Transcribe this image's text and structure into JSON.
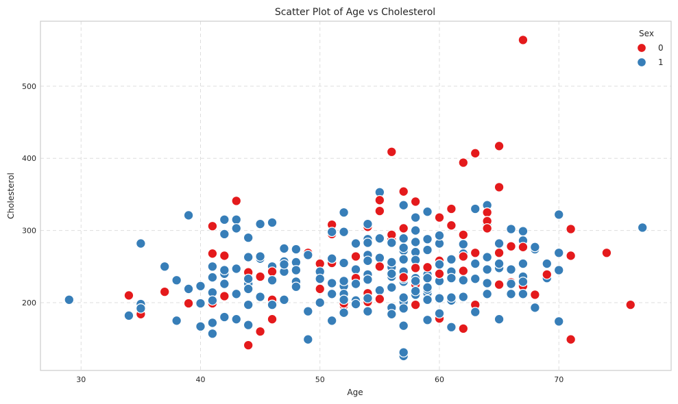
{
  "chart_data": {
    "type": "scatter",
    "title": "Scatter Plot of Age vs Cholesterol",
    "xlabel": "Age",
    "ylabel": "Cholesterol",
    "xlim": [
      26.6,
      79.4
    ],
    "ylim": [
      106,
      590
    ],
    "xticks": [
      30,
      40,
      50,
      60,
      70
    ],
    "yticks": [
      200,
      300,
      400,
      500
    ],
    "grid": true,
    "legend": {
      "title": "Sex",
      "placement": "top-right"
    },
    "series": [
      {
        "name": "0",
        "color": "#e41a1c",
        "points": [
          [
            34,
            210
          ],
          [
            35,
            184
          ],
          [
            37,
            215
          ],
          [
            39,
            199
          ],
          [
            41,
            199
          ],
          [
            41,
            268
          ],
          [
            41,
            306
          ],
          [
            42,
            209
          ],
          [
            42,
            265
          ],
          [
            43,
            341
          ],
          [
            43,
            211
          ],
          [
            44,
            141
          ],
          [
            44,
            242
          ],
          [
            45,
            160
          ],
          [
            45,
            236
          ],
          [
            46,
            177
          ],
          [
            46,
            204
          ],
          [
            46,
            243
          ],
          [
            49,
            269
          ],
          [
            50,
            254
          ],
          [
            50,
            219
          ],
          [
            51,
            308
          ],
          [
            51,
            295
          ],
          [
            51,
            255
          ],
          [
            52,
            196
          ],
          [
            52,
            199
          ],
          [
            53,
            264
          ],
          [
            53,
            234
          ],
          [
            54,
            305
          ],
          [
            54,
            213
          ],
          [
            54,
            201
          ],
          [
            55,
            342
          ],
          [
            55,
            327
          ],
          [
            55,
            250
          ],
          [
            55,
            205
          ],
          [
            56,
            409
          ],
          [
            56,
            294
          ],
          [
            56,
            288
          ],
          [
            57,
            354
          ],
          [
            57,
            303
          ],
          [
            57,
            240
          ],
          [
            57,
            235
          ],
          [
            58,
            340
          ],
          [
            58,
            248
          ],
          [
            58,
            225
          ],
          [
            58,
            197
          ],
          [
            59,
            249
          ],
          [
            60,
            318
          ],
          [
            60,
            258
          ],
          [
            60,
            240
          ],
          [
            60,
            178
          ],
          [
            61,
            330
          ],
          [
            61,
            307
          ],
          [
            62,
            394
          ],
          [
            62,
            294
          ],
          [
            62,
            264
          ],
          [
            62,
            244
          ],
          [
            62,
            164
          ],
          [
            63,
            407
          ],
          [
            63,
            269
          ],
          [
            63,
            197
          ],
          [
            64,
            325
          ],
          [
            64,
            313
          ],
          [
            64,
            303
          ],
          [
            65,
            417
          ],
          [
            65,
            360
          ],
          [
            65,
            269
          ],
          [
            65,
            225
          ],
          [
            66,
            278
          ],
          [
            66,
            228
          ],
          [
            67,
            564
          ],
          [
            67,
            277
          ],
          [
            67,
            223
          ],
          [
            68,
            211
          ],
          [
            69,
            239
          ],
          [
            71,
            302
          ],
          [
            71,
            265
          ],
          [
            71,
            149
          ],
          [
            74,
            269
          ],
          [
            76,
            197
          ]
        ]
      },
      {
        "name": "1",
        "color": "#377eb8",
        "points": [
          [
            29,
            204
          ],
          [
            34,
            182
          ],
          [
            35,
            282
          ],
          [
            35,
            198
          ],
          [
            35,
            192
          ],
          [
            37,
            250
          ],
          [
            38,
            231
          ],
          [
            38,
            175
          ],
          [
            39,
            321
          ],
          [
            39,
            219
          ],
          [
            40,
            223
          ],
          [
            40,
            199
          ],
          [
            40,
            167
          ],
          [
            41,
            250
          ],
          [
            41,
            235
          ],
          [
            41,
            214
          ],
          [
            41,
            203
          ],
          [
            41,
            172
          ],
          [
            41,
            157
          ],
          [
            42,
            315
          ],
          [
            42,
            295
          ],
          [
            42,
            245
          ],
          [
            42,
            240
          ],
          [
            42,
            226
          ],
          [
            42,
            180
          ],
          [
            43,
            315
          ],
          [
            43,
            303
          ],
          [
            43,
            247
          ],
          [
            43,
            212
          ],
          [
            43,
            177
          ],
          [
            44,
            290
          ],
          [
            44,
            263
          ],
          [
            44,
            233
          ],
          [
            44,
            226
          ],
          [
            44,
            219
          ],
          [
            44,
            197
          ],
          [
            44,
            169
          ],
          [
            45,
            309
          ],
          [
            45,
            264
          ],
          [
            45,
            261
          ],
          [
            45,
            208
          ],
          [
            46,
            311
          ],
          [
            46,
            250
          ],
          [
            46,
            231
          ],
          [
            46,
            197
          ],
          [
            47,
            275
          ],
          [
            47,
            257
          ],
          [
            47,
            253
          ],
          [
            47,
            243
          ],
          [
            47,
            204
          ],
          [
            48,
            274
          ],
          [
            48,
            256
          ],
          [
            48,
            245
          ],
          [
            48,
            229
          ],
          [
            48,
            222
          ],
          [
            49,
            266
          ],
          [
            49,
            188
          ],
          [
            49,
            149
          ],
          [
            50,
            243
          ],
          [
            50,
            233
          ],
          [
            50,
            200
          ],
          [
            51,
            298
          ],
          [
            51,
            261
          ],
          [
            51,
            227
          ],
          [
            51,
            212
          ],
          [
            51,
            175
          ],
          [
            52,
            325
          ],
          [
            52,
            298
          ],
          [
            52,
            255
          ],
          [
            52,
            230
          ],
          [
            52,
            223
          ],
          [
            52,
            212
          ],
          [
            52,
            204
          ],
          [
            52,
            186
          ],
          [
            53,
            282
          ],
          [
            53,
            246
          ],
          [
            53,
            226
          ],
          [
            53,
            203
          ],
          [
            53,
            198
          ],
          [
            54,
            309
          ],
          [
            54,
            288
          ],
          [
            54,
            283
          ],
          [
            54,
            266
          ],
          [
            54,
            258
          ],
          [
            54,
            239
          ],
          [
            54,
            232
          ],
          [
            54,
            206
          ],
          [
            54,
            188
          ],
          [
            55,
            353
          ],
          [
            55,
            289
          ],
          [
            55,
            262
          ],
          [
            55,
            217
          ],
          [
            56,
            283
          ],
          [
            56,
            256
          ],
          [
            56,
            249
          ],
          [
            56,
            240
          ],
          [
            56,
            236
          ],
          [
            56,
            221
          ],
          [
            56,
            193
          ],
          [
            56,
            184
          ],
          [
            57,
            335
          ],
          [
            57,
            289
          ],
          [
            57,
            276
          ],
          [
            57,
            272
          ],
          [
            57,
            260
          ],
          [
            57,
            243
          ],
          [
            57,
            233
          ],
          [
            57,
            229
          ],
          [
            57,
            207
          ],
          [
            57,
            201
          ],
          [
            57,
            192
          ],
          [
            57,
            168
          ],
          [
            57,
            131
          ],
          [
            57,
            126
          ],
          [
            58,
            318
          ],
          [
            58,
            300
          ],
          [
            58,
            284
          ],
          [
            58,
            270
          ],
          [
            58,
            259
          ],
          [
            58,
            234
          ],
          [
            58,
            230
          ],
          [
            58,
            224
          ],
          [
            58,
            220
          ],
          [
            58,
            216
          ],
          [
            58,
            211
          ],
          [
            59,
            326
          ],
          [
            59,
            288
          ],
          [
            59,
            273
          ],
          [
            59,
            239
          ],
          [
            59,
            234
          ],
          [
            59,
            221
          ],
          [
            59,
            218
          ],
          [
            59,
            213
          ],
          [
            59,
            204
          ],
          [
            59,
            176
          ],
          [
            60,
            293
          ],
          [
            60,
            282
          ],
          [
            60,
            253
          ],
          [
            60,
            230
          ],
          [
            60,
            206
          ],
          [
            60,
            185
          ],
          [
            61,
            260
          ],
          [
            61,
            243
          ],
          [
            61,
            234
          ],
          [
            61,
            207
          ],
          [
            61,
            203
          ],
          [
            61,
            166
          ],
          [
            62,
            281
          ],
          [
            62,
            268
          ],
          [
            62,
            231
          ],
          [
            62,
            208
          ],
          [
            63,
            330
          ],
          [
            63,
            254
          ],
          [
            63,
            233
          ],
          [
            63,
            187
          ],
          [
            64,
            335
          ],
          [
            64,
            309
          ],
          [
            64,
            263
          ],
          [
            64,
            246
          ],
          [
            64,
            227
          ],
          [
            64,
            212
          ],
          [
            65,
            282
          ],
          [
            65,
            254
          ],
          [
            65,
            248
          ],
          [
            65,
            177
          ],
          [
            66,
            302
          ],
          [
            66,
            246
          ],
          [
            66,
            226
          ],
          [
            66,
            212
          ],
          [
            67,
            299
          ],
          [
            67,
            286
          ],
          [
            67,
            254
          ],
          [
            67,
            236
          ],
          [
            67,
            229
          ],
          [
            67,
            212
          ],
          [
            68,
            277
          ],
          [
            68,
            274
          ],
          [
            68,
            193
          ],
          [
            69,
            254
          ],
          [
            69,
            234
          ],
          [
            70,
            322
          ],
          [
            70,
            269
          ],
          [
            70,
            245
          ],
          [
            70,
            174
          ],
          [
            77,
            304
          ]
        ]
      }
    ]
  }
}
